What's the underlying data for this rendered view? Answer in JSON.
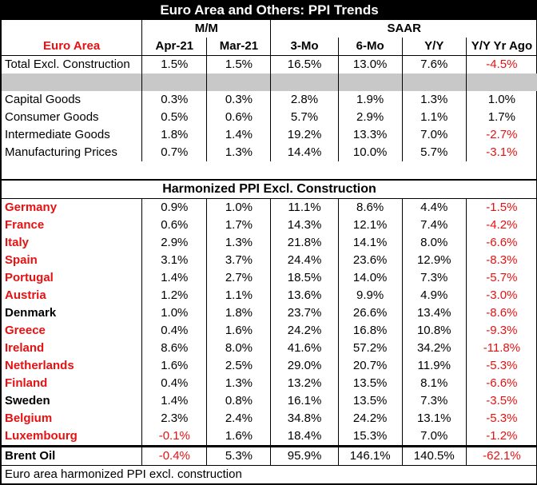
{
  "chart_data": {
    "type": "table",
    "title": "Euro Area and Others: PPI Trends",
    "groups": {
      "mm": "M/M",
      "saar": "SAAR"
    },
    "columns": [
      "Euro Area",
      "Apr-21",
      "Mar-21",
      "3-Mo",
      "6-Mo",
      "Y/Y",
      "Y/Y Yr Ago"
    ],
    "euro_rows": [
      {
        "label": "Total Excl. Construction",
        "values": [
          "1.5%",
          "1.5%",
          "16.5%",
          "13.0%",
          "7.6%",
          "-4.5%"
        ]
      },
      {
        "label": "Capital Goods",
        "values": [
          "0.3%",
          "0.3%",
          "2.8%",
          "1.9%",
          "1.3%",
          "1.0%"
        ]
      },
      {
        "label": "Consumer Goods",
        "values": [
          "0.5%",
          "0.6%",
          "5.7%",
          "2.9%",
          "1.1%",
          "1.7%"
        ]
      },
      {
        "label": "Intermediate Goods",
        "values": [
          "1.8%",
          "1.4%",
          "19.2%",
          "13.3%",
          "7.0%",
          "-2.7%"
        ]
      },
      {
        "label": "Manufacturing Prices",
        "values": [
          "0.7%",
          "1.3%",
          "14.4%",
          "10.0%",
          "5.7%",
          "-3.1%"
        ]
      }
    ],
    "section_title": "Harmonized PPI Excl. Construction",
    "country_rows": [
      {
        "label": "Germany",
        "euro": true,
        "values": [
          "0.9%",
          "1.0%",
          "11.1%",
          "8.6%",
          "4.4%",
          "-1.5%"
        ]
      },
      {
        "label": "France",
        "euro": true,
        "values": [
          "0.6%",
          "1.7%",
          "14.3%",
          "12.1%",
          "7.4%",
          "-4.2%"
        ]
      },
      {
        "label": "Italy",
        "euro": true,
        "values": [
          "2.9%",
          "1.3%",
          "21.8%",
          "14.1%",
          "8.0%",
          "-6.6%"
        ]
      },
      {
        "label": "Spain",
        "euro": true,
        "values": [
          "3.1%",
          "3.7%",
          "24.4%",
          "23.6%",
          "12.9%",
          "-8.3%"
        ]
      },
      {
        "label": "Portugal",
        "euro": true,
        "values": [
          "1.4%",
          "2.7%",
          "18.5%",
          "14.0%",
          "7.3%",
          "-5.7%"
        ]
      },
      {
        "label": "Austria",
        "euro": true,
        "values": [
          "1.2%",
          "1.1%",
          "13.6%",
          "9.9%",
          "4.9%",
          "-3.0%"
        ]
      },
      {
        "label": "Denmark",
        "euro": false,
        "values": [
          "1.0%",
          "1.8%",
          "23.7%",
          "26.6%",
          "13.4%",
          "-8.6%"
        ]
      },
      {
        "label": "Greece",
        "euro": true,
        "values": [
          "0.4%",
          "1.6%",
          "24.2%",
          "16.8%",
          "10.8%",
          "-9.3%"
        ]
      },
      {
        "label": "Ireland",
        "euro": true,
        "values": [
          "8.6%",
          "8.0%",
          "41.6%",
          "57.2%",
          "34.2%",
          "-11.8%"
        ]
      },
      {
        "label": "Netherlands",
        "euro": true,
        "values": [
          "1.6%",
          "2.5%",
          "29.0%",
          "20.7%",
          "11.9%",
          "-5.3%"
        ]
      },
      {
        "label": "Finland",
        "euro": true,
        "values": [
          "0.4%",
          "1.3%",
          "13.2%",
          "13.5%",
          "8.1%",
          "-6.6%"
        ]
      },
      {
        "label": "Sweden",
        "euro": false,
        "values": [
          "1.4%",
          "0.8%",
          "16.1%",
          "13.5%",
          "7.3%",
          "-3.5%"
        ]
      },
      {
        "label": "Belgium",
        "euro": true,
        "values": [
          "2.3%",
          "2.4%",
          "34.8%",
          "24.2%",
          "13.1%",
          "-5.3%"
        ]
      },
      {
        "label": "Luxembourg",
        "euro": true,
        "values": [
          "-0.1%",
          "1.6%",
          "18.4%",
          "15.3%",
          "7.0%",
          "-1.2%"
        ]
      }
    ],
    "brent_row": {
      "label": "Brent Oil",
      "values": [
        "-0.4%",
        "5.3%",
        "95.9%",
        "146.1%",
        "140.5%",
        "-62.1%"
      ]
    },
    "footer": "Euro area harmonized PPI excl. construction",
    "colors": {
      "red": "#e41212",
      "gray": "#c8c8c8",
      "black": "#000000"
    }
  }
}
